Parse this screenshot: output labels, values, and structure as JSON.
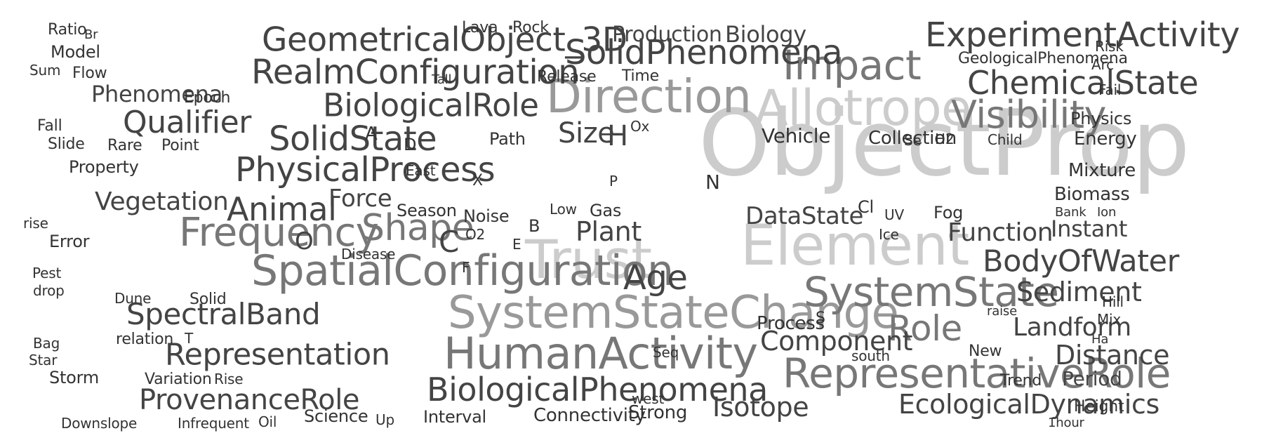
{
  "colors": {
    "background": "#ffffff",
    "dark": "#333333",
    "medium": "#444444",
    "gray": "#777777",
    "light_gray": "#999999",
    "faint_gray": "#cccccc"
  },
  "words": [
    {
      "text": "ObjectProp",
      "tone": "faint_gray"
    },
    {
      "text": "Element",
      "tone": "faint_gray"
    },
    {
      "text": "Trust",
      "tone": "faint_gray"
    },
    {
      "text": "Allotrope",
      "tone": "faint_gray"
    },
    {
      "text": "Direction",
      "tone": "light_gray"
    },
    {
      "text": "SystemStateChange",
      "tone": "light_gray"
    },
    {
      "text": "Impact",
      "tone": "gray"
    },
    {
      "text": "HumanActivity",
      "tone": "gray"
    },
    {
      "text": "RepresentativeRole",
      "tone": "gray"
    },
    {
      "text": "SpatialConfiguration",
      "tone": "gray"
    },
    {
      "text": "SystemState",
      "tone": "gray"
    },
    {
      "text": "Visibility",
      "tone": "gray"
    },
    {
      "text": "Frequency",
      "tone": "gray"
    },
    {
      "text": "Shape",
      "tone": "gray"
    },
    {
      "text": "SolidPhenomena",
      "tone": "medium"
    },
    {
      "text": "Role",
      "tone": "gray"
    },
    {
      "text": "Age",
      "tone": "medium"
    },
    {
      "text": "GeometricalObject_3D",
      "tone": "medium"
    },
    {
      "text": "ExperimentActivity",
      "tone": "medium"
    },
    {
      "text": "RealmConfiguration",
      "tone": "medium"
    },
    {
      "text": "PhysicalProcess",
      "tone": "medium"
    },
    {
      "text": "SolidState",
      "tone": "medium"
    },
    {
      "text": "BiologicalRole",
      "tone": "medium"
    },
    {
      "text": "ChemicalState",
      "tone": "medium"
    },
    {
      "text": "Animal",
      "tone": "medium"
    },
    {
      "text": "Qualifier",
      "tone": "medium"
    },
    {
      "text": "BiologicalPhenomena",
      "tone": "medium"
    },
    {
      "text": "Representation",
      "tone": "medium"
    },
    {
      "text": "BodyOfWater",
      "tone": "medium"
    },
    {
      "text": "ProvenanceRole",
      "tone": "medium"
    },
    {
      "text": "EcologicalDynamics",
      "tone": "medium"
    },
    {
      "text": "Component",
      "tone": "medium"
    },
    {
      "text": "SpectralBand",
      "tone": "medium"
    },
    {
      "text": "Distance",
      "tone": "medium"
    },
    {
      "text": "Sediment",
      "tone": "medium"
    },
    {
      "text": "Landform",
      "tone": "medium"
    },
    {
      "text": "Size",
      "tone": "medium"
    },
    {
      "text": "Isotope",
      "tone": "medium"
    },
    {
      "text": "Function",
      "tone": "medium"
    },
    {
      "text": "DataState",
      "tone": "medium"
    },
    {
      "text": "Vegetation",
      "tone": "medium"
    },
    {
      "text": "Plant",
      "tone": "medium"
    },
    {
      "text": "Production",
      "tone": "medium"
    },
    {
      "text": "Biology",
      "tone": "medium"
    },
    {
      "text": "Instant",
      "tone": "medium"
    },
    {
      "text": "Force",
      "tone": "medium"
    },
    {
      "text": "Period",
      "tone": "medium"
    },
    {
      "text": "Phenomena",
      "tone": "medium"
    },
    {
      "text": "Vehicle",
      "tone": "dark"
    },
    {
      "text": "Process",
      "tone": "dark"
    },
    {
      "text": "Mixture",
      "tone": "dark"
    },
    {
      "text": "Biomass",
      "tone": "dark"
    },
    {
      "text": "Energy",
      "tone": "dark"
    },
    {
      "text": "Physics",
      "tone": "dark"
    },
    {
      "text": "Collection",
      "tone": "dark"
    },
    {
      "text": "Connectivity",
      "tone": "dark"
    },
    {
      "text": "Strong",
      "tone": "dark"
    },
    {
      "text": "Interval",
      "tone": "dark"
    },
    {
      "text": "Science",
      "tone": "dark"
    },
    {
      "text": "Season",
      "tone": "dark"
    },
    {
      "text": "Noise",
      "tone": "dark"
    },
    {
      "text": "Property",
      "tone": "dark"
    },
    {
      "text": "Model",
      "tone": "dark"
    },
    {
      "text": "Error",
      "tone": "dark"
    },
    {
      "text": "Storm",
      "tone": "dark"
    },
    {
      "text": "Trend",
      "tone": "dark"
    },
    {
      "text": "GeologicalPhenomena",
      "tone": "dark"
    },
    {
      "text": "Ratio",
      "tone": "dark"
    },
    {
      "text": "Flow",
      "tone": "dark"
    },
    {
      "text": "Slide",
      "tone": "dark"
    },
    {
      "text": "Fall",
      "tone": "dark"
    },
    {
      "text": "Rare",
      "tone": "dark"
    },
    {
      "text": "Point",
      "tone": "dark"
    },
    {
      "text": "Path",
      "tone": "dark"
    },
    {
      "text": "Gas",
      "tone": "dark"
    },
    {
      "text": "Fog",
      "tone": "dark"
    },
    {
      "text": "Time",
      "tone": "dark"
    },
    {
      "text": "Release",
      "tone": "dark"
    },
    {
      "text": "Lava",
      "tone": "dark"
    },
    {
      "text": "Rock",
      "tone": "dark"
    },
    {
      "text": "Epoch",
      "tone": "dark"
    },
    {
      "text": "Sum",
      "tone": "dark"
    },
    {
      "text": "Dune",
      "tone": "dark"
    },
    {
      "text": "Solid",
      "tone": "dark"
    },
    {
      "text": "relation",
      "tone": "dark"
    },
    {
      "text": "Variation",
      "tone": "dark"
    },
    {
      "text": "Rise",
      "tone": "dark"
    },
    {
      "text": "Downslope",
      "tone": "dark"
    },
    {
      "text": "Infrequent",
      "tone": "dark"
    },
    {
      "text": "Oil",
      "tone": "dark"
    },
    {
      "text": "Up",
      "tone": "dark"
    },
    {
      "text": "Bag",
      "tone": "dark"
    },
    {
      "text": "Star",
      "tone": "dark"
    },
    {
      "text": "Pest",
      "tone": "dark"
    },
    {
      "text": "drop",
      "tone": "dark"
    },
    {
      "text": "rise",
      "tone": "dark"
    },
    {
      "text": "Disease",
      "tone": "dark"
    },
    {
      "text": "Low",
      "tone": "dark"
    },
    {
      "text": "Child",
      "tone": "dark"
    },
    {
      "text": "UV",
      "tone": "dark"
    },
    {
      "text": "Ice",
      "tone": "dark"
    },
    {
      "text": "Bank",
      "tone": "dark"
    },
    {
      "text": "Ion",
      "tone": "dark"
    },
    {
      "text": "New",
      "tone": "dark"
    },
    {
      "text": "south",
      "tone": "dark"
    },
    {
      "text": "Seq",
      "tone": "dark"
    },
    {
      "text": "west",
      "tone": "dark"
    },
    {
      "text": "raise",
      "tone": "dark"
    },
    {
      "text": "Risk",
      "tone": "dark"
    },
    {
      "text": "Arc",
      "tone": "dark"
    },
    {
      "text": "Fail",
      "tone": "dark"
    },
    {
      "text": "Hill",
      "tone": "dark"
    },
    {
      "text": "Mix",
      "tone": "dark"
    },
    {
      "text": "Ha",
      "tone": "dark"
    },
    {
      "text": "Height",
      "tone": "dark"
    },
    {
      "text": "1hour",
      "tone": "dark"
    },
    {
      "text": "East",
      "tone": "dark"
    },
    {
      "text": "Tall",
      "tone": "dark"
    },
    {
      "text": "Ox",
      "tone": "dark"
    },
    {
      "text": "H2",
      "tone": "dark"
    },
    {
      "text": "O2",
      "tone": "dark"
    },
    {
      "text": "Cl",
      "tone": "dark"
    },
    {
      "text": "Br",
      "tone": "dark"
    },
    {
      "text": "S",
      "tone": "dark"
    },
    {
      "text": "C",
      "tone": "medium"
    },
    {
      "text": "H",
      "tone": "medium"
    },
    {
      "text": "O",
      "tone": "medium"
    },
    {
      "text": "N",
      "tone": "dark"
    },
    {
      "text": "P",
      "tone": "dark"
    },
    {
      "text": "B",
      "tone": "dark"
    },
    {
      "text": "E",
      "tone": "dark"
    },
    {
      "text": "F",
      "tone": "dark"
    },
    {
      "text": "X",
      "tone": "dark"
    },
    {
      "text": "A",
      "tone": "dark"
    },
    {
      "text": "D",
      "tone": "dark"
    },
    {
      "text": "T",
      "tone": "dark"
    },
    {
      "text": "Se",
      "tone": "dark"
    }
  ]
}
